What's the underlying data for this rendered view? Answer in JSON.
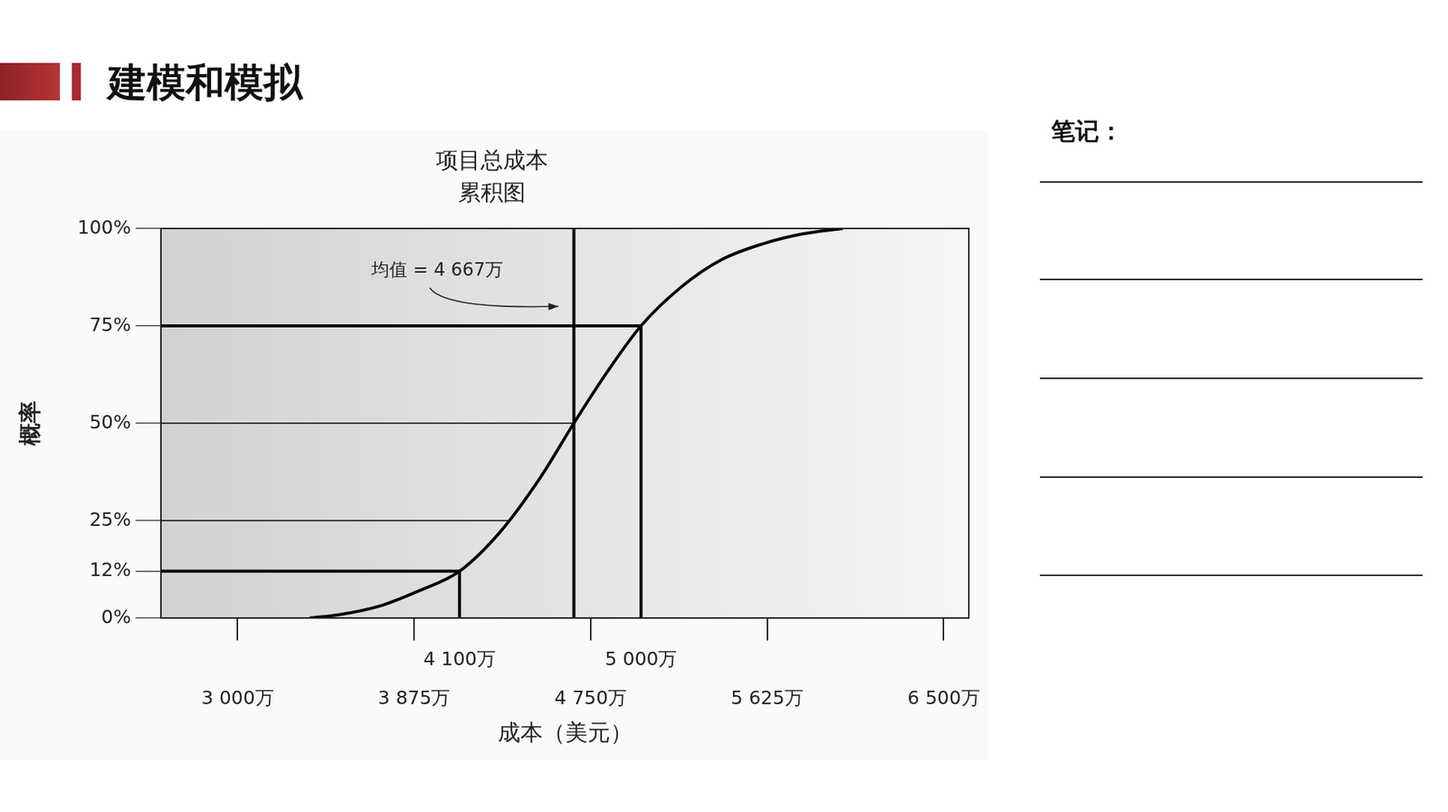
{
  "header": {
    "title": "建模和模拟"
  },
  "notes": {
    "label": "笔记："
  },
  "chart_data": {
    "type": "line",
    "title": [
      "项目总成本",
      "累积图"
    ],
    "x_label": "成本（美元）",
    "y_label": "概率",
    "x": [
      3357,
      3500,
      3700,
      3900,
      4100,
      4300,
      4500,
      4667,
      4830,
      5000,
      5200,
      5400,
      5600,
      5800,
      6000
    ],
    "values": [
      0,
      0.8,
      3,
      7,
      12,
      22,
      36,
      50,
      63,
      75,
      85,
      92,
      96,
      98.6,
      100
    ],
    "color": "#000000",
    "xlim": [
      2620,
      6625
    ],
    "xticks": [
      {
        "value": 3000,
        "label": "3 000万"
      },
      {
        "value": 3875,
        "label": "3 875万"
      },
      {
        "value": 4100,
        "label": "4 100万"
      },
      {
        "value": 4750,
        "label": "4 750万"
      },
      {
        "value": 5000,
        "label": "5 000万"
      },
      {
        "value": 5625,
        "label": "5 625万"
      },
      {
        "value": 6500,
        "label": "6 500万"
      }
    ],
    "ylim": [
      0,
      100
    ],
    "yticks": [
      {
        "value": 0,
        "label": "0%"
      },
      {
        "value": 12,
        "label": "12%"
      },
      {
        "value": 25,
        "label": "25%"
      },
      {
        "value": 50,
        "label": "50%"
      },
      {
        "value": 75,
        "label": "75%"
      },
      {
        "value": 100,
        "label": "100%"
      }
    ],
    "grid": false,
    "reference_lines": [
      {
        "x": [
          2620,
          4100
        ],
        "y": [
          12,
          12
        ],
        "line_style": "bold"
      },
      {
        "x": [
          4100,
          4100
        ],
        "y": [
          0,
          12
        ],
        "line_style": "bold"
      },
      {
        "x": [
          2620,
          5000
        ],
        "y": [
          75,
          75
        ],
        "line_style": "bold"
      },
      {
        "x": [
          5000,
          5000
        ],
        "y": [
          0,
          75
        ],
        "line_style": "bold"
      },
      {
        "x": [
          4667,
          4667
        ],
        "y": [
          0,
          100
        ],
        "line_style": "bold"
      },
      {
        "x": [
          2620,
          4667
        ],
        "y": [
          50,
          50
        ],
        "line_style": "thin"
      },
      {
        "x": [
          2620,
          4340
        ],
        "y": [
          25,
          25
        ],
        "line_style": "thin"
      }
    ],
    "annotations": [
      {
        "text": "均值 = 4 667万",
        "x": 3990,
        "y": 89,
        "arrow_to": {
          "x": 4590,
          "y": 80
        }
      }
    ]
  }
}
